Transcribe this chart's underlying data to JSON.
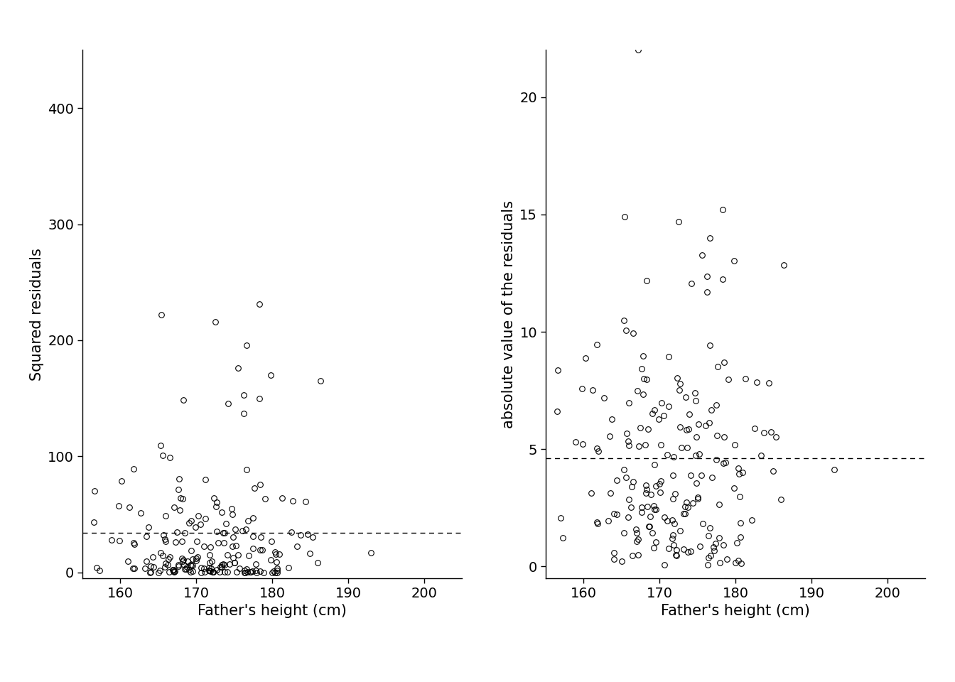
{
  "xlabel": "Father's height (cm)",
  "ylabel_left": "Squared residuals",
  "ylabel_right": "absolute value of the residuals",
  "xlim_left": [
    155,
    205
  ],
  "xlim_right": [
    155,
    205
  ],
  "ylim_left": [
    -5,
    450
  ],
  "ylim_right": [
    -0.5,
    22
  ],
  "xticks": [
    160,
    170,
    180,
    190,
    200
  ],
  "yticks_left": [
    0,
    100,
    200,
    300,
    400
  ],
  "yticks_right": [
    0,
    5,
    10,
    15,
    20
  ],
  "marker_size": 5.5,
  "marker_facecolor": "none",
  "marker_edgecolor": "#000000",
  "marker_linewidth": 0.8,
  "dashed_line_color": "#000000",
  "background_color": "#ffffff",
  "label_fontsize": 15,
  "tick_fontsize": 14,
  "MSE": 40.0,
  "MAE": 4.5
}
